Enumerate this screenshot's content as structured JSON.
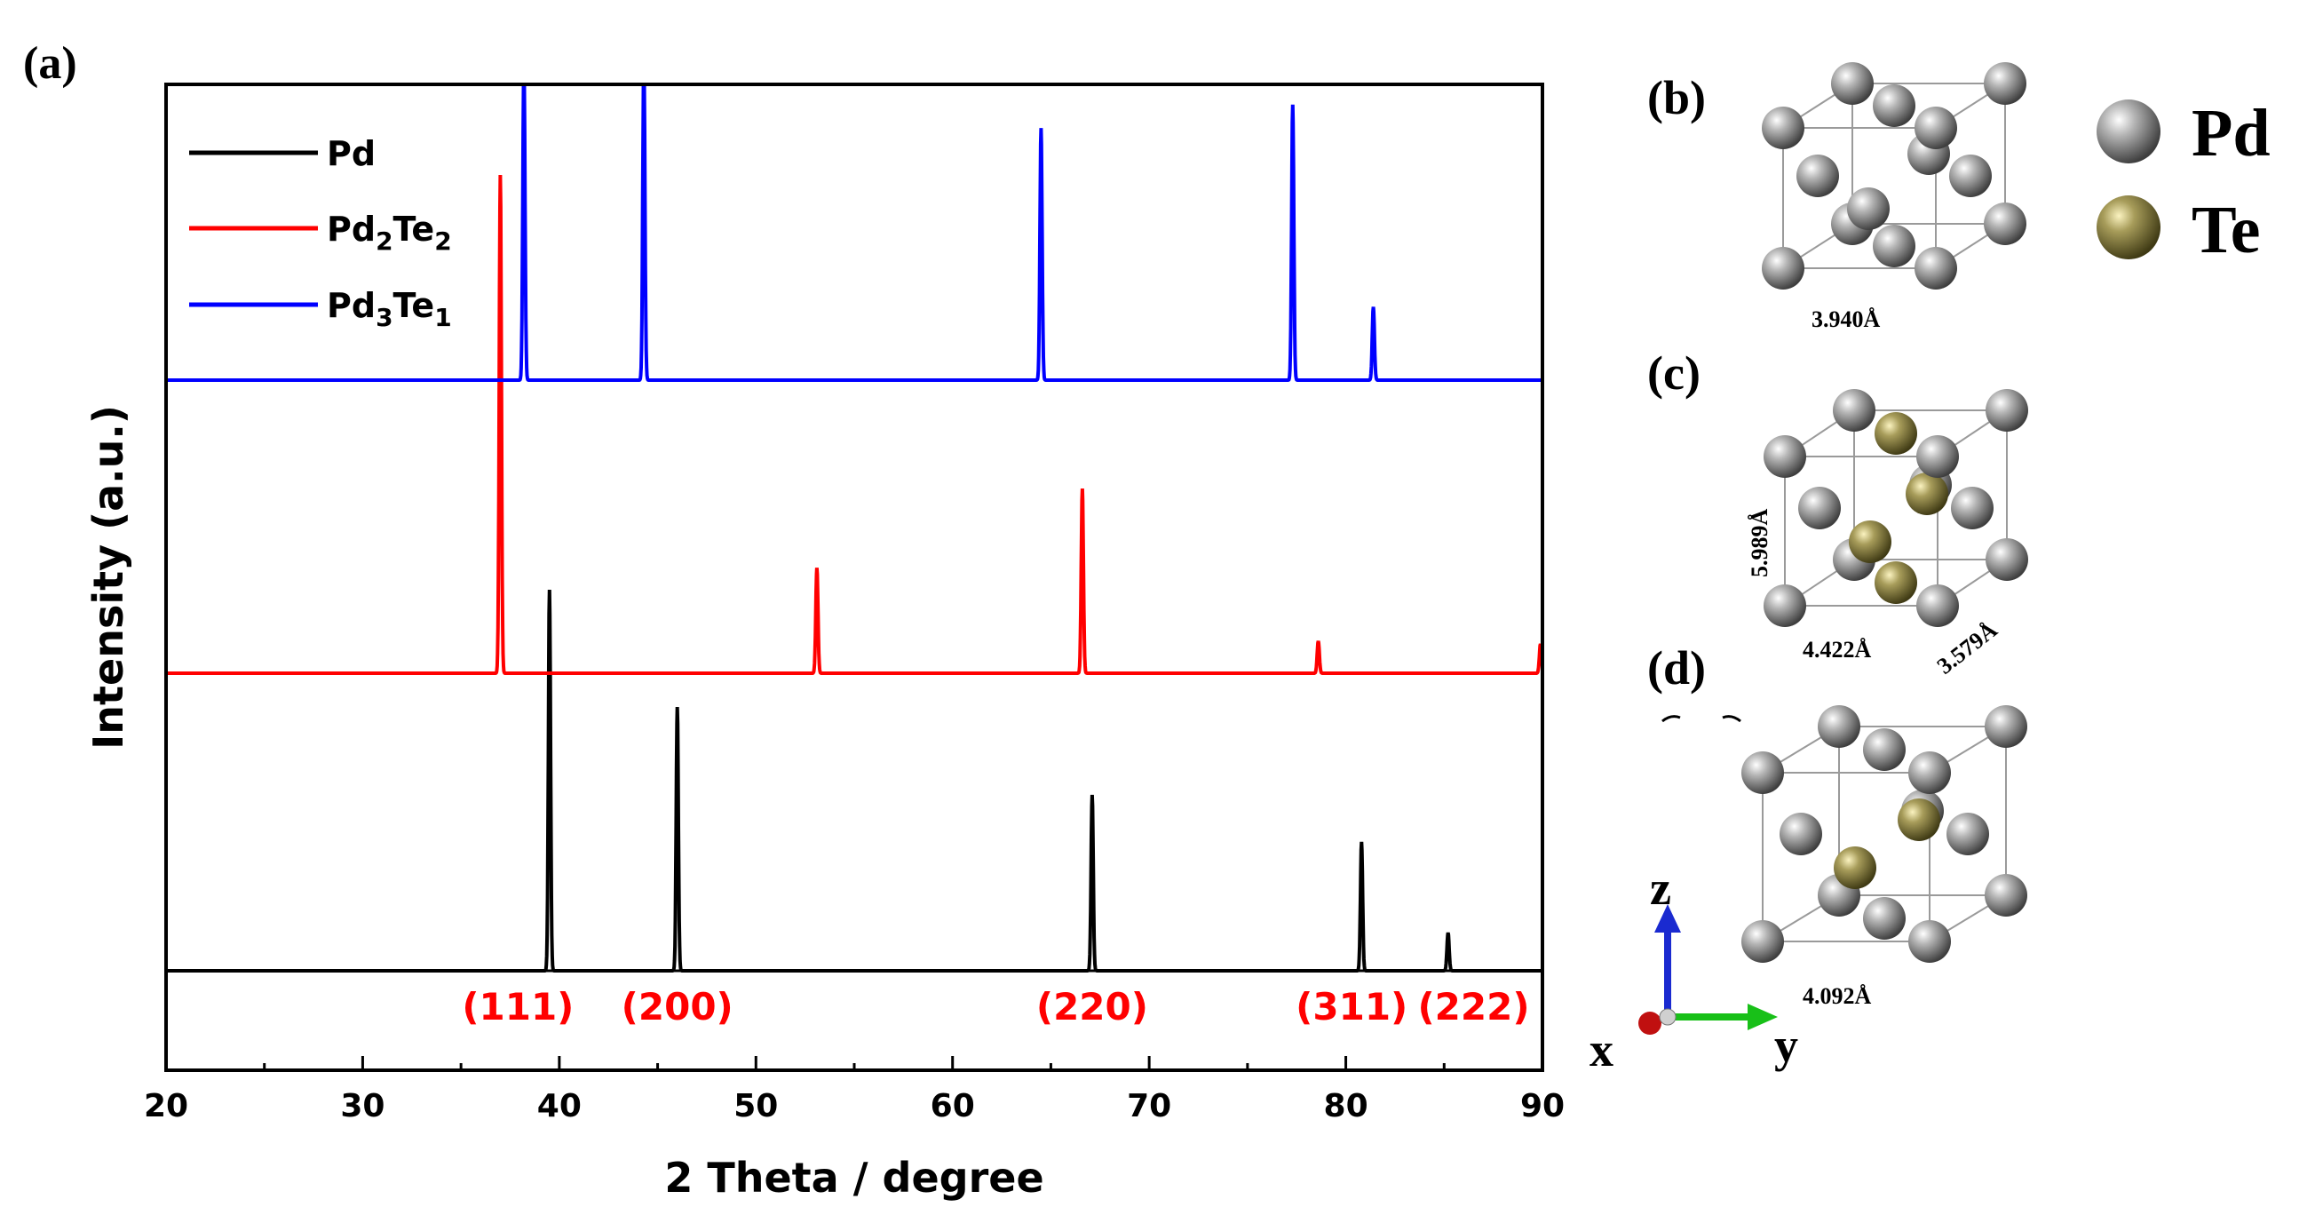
{
  "panels": {
    "a": "(a)",
    "b": "(b)",
    "c": "(c)",
    "d": "(d)"
  },
  "chart_data": {
    "type": "line",
    "xlabel": "2 Theta / degree",
    "ylabel": "Intensity (a.u.)",
    "xlim": [
      20,
      90
    ],
    "xticks": [
      20,
      30,
      40,
      50,
      60,
      70,
      80,
      90
    ],
    "legend_position": "top-left",
    "series": [
      {
        "name": "Pd",
        "color": "#000000",
        "baseline": 0,
        "peaks": [
          {
            "x": 39.5,
            "height": 1.3
          },
          {
            "x": 46.0,
            "height": 0.9
          },
          {
            "x": 67.1,
            "height": 0.6
          },
          {
            "x": 80.8,
            "height": 0.44
          },
          {
            "x": 85.2,
            "height": 0.13
          }
        ]
      },
      {
        "name": "Pd2Te2",
        "color": "#ff0000",
        "baseline": 1,
        "peaks": [
          {
            "x": 37.0,
            "height": 1.7
          },
          {
            "x": 53.1,
            "height": 0.36
          },
          {
            "x": 66.6,
            "height": 0.63
          },
          {
            "x": 78.6,
            "height": 0.11
          },
          {
            "x": 89.9,
            "height": 0.1
          }
        ]
      },
      {
        "name": "Pd3Te1",
        "color": "#0000ff",
        "baseline": 2,
        "peaks": [
          {
            "x": 38.2,
            "height": 1.1
          },
          {
            "x": 44.3,
            "height": 1.1
          },
          {
            "x": 64.5,
            "height": 0.86
          },
          {
            "x": 77.3,
            "height": 0.94
          },
          {
            "x": 81.4,
            "height": 0.25
          }
        ]
      }
    ],
    "annotations": [
      {
        "label": "(111)",
        "x": 37.9
      },
      {
        "label": "(200)",
        "x": 46.0
      },
      {
        "label": "(220)",
        "x": 67.1
      },
      {
        "label": "(311)",
        "x": 80.3
      },
      {
        "label": "(222)",
        "x": 86.5
      }
    ],
    "annotation_color": "#ff0000"
  },
  "structures": {
    "legend": {
      "pd_label": "Pd",
      "te_label": "Te",
      "pd_color": "#8a8a8a",
      "te_color": "#7d7340"
    },
    "b": {
      "dim1": "3.940Å"
    },
    "c": {
      "dim_left": "5.989Å",
      "dim_bottom": "4.422Å",
      "dim_right": "3.579Å"
    },
    "d": {
      "dim1": "4.092Å"
    },
    "axes": {
      "x": "x",
      "y": "y",
      "z": "z"
    }
  }
}
